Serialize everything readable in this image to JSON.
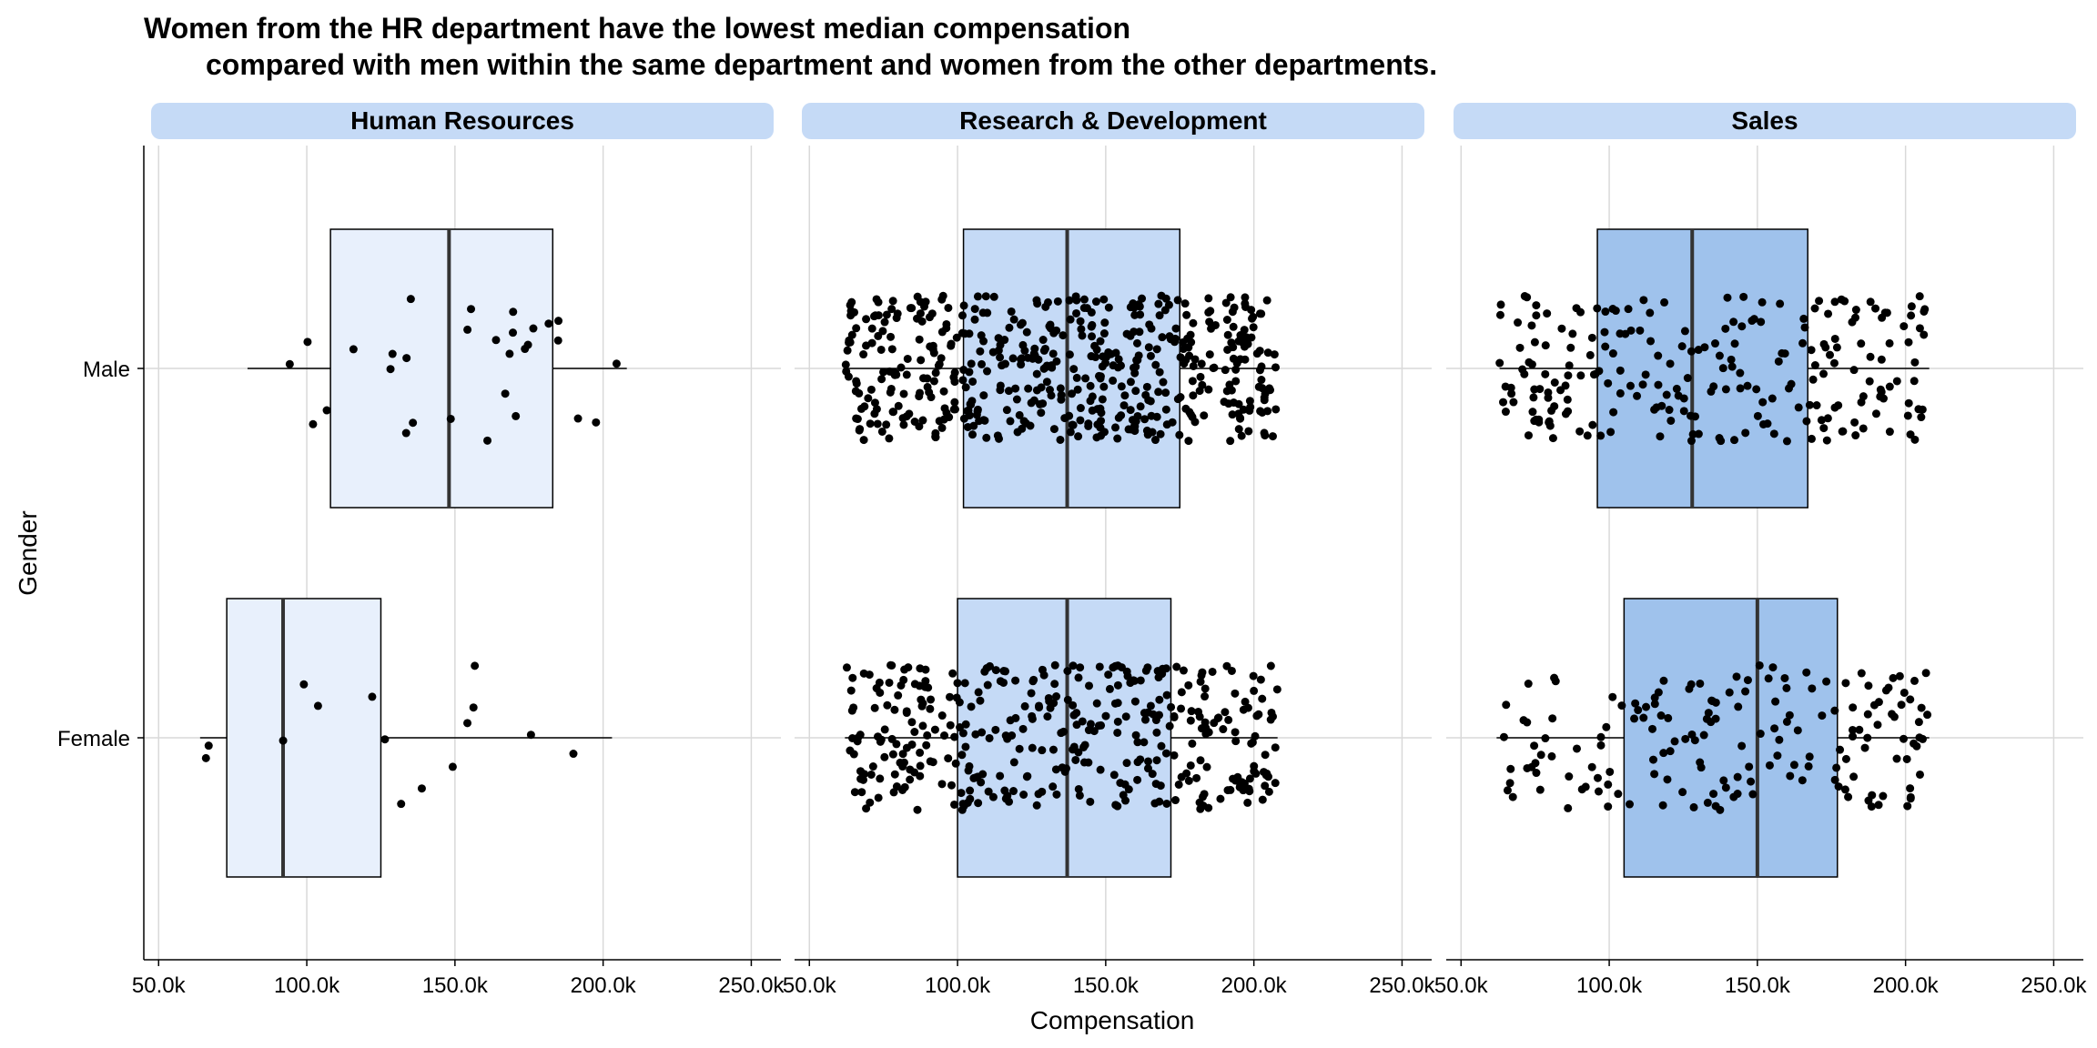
{
  "chart_data": {
    "type": "boxplot-jitter",
    "title_line1": "Women from the HR department have the lowest median compensation",
    "title_line2": "compared with men within the same department and women from the other departments.",
    "xlabel": "Compensation",
    "ylabel": "Gender",
    "xlim": [
      45000,
      260000
    ],
    "x_ticks": [
      50000,
      100000,
      150000,
      200000,
      250000
    ],
    "x_tick_labels": [
      "50.0k",
      "100.0k",
      "150.0k",
      "200.0k",
      "250.0k"
    ],
    "categories": [
      "Male",
      "Female"
    ],
    "colors": {
      "strip_bg": "#c5daf6",
      "hr_fill": "#e8f0fc",
      "rd_fill": "#c5daf6",
      "sales_fill": "#9fc2ec",
      "point": "#000000",
      "grid": "#d9d9d9"
    },
    "panels": [
      {
        "name": "Human Resources",
        "fill_key": "hr_fill",
        "boxes": [
          {
            "gender": "Male",
            "whisker_low": 80000,
            "q1": 108000,
            "median": 148000,
            "q3": 183000,
            "whisker_high": 208000,
            "n_points": 30
          },
          {
            "gender": "Female",
            "whisker_low": 64000,
            "q1": 73000,
            "median": 92000,
            "q3": 125000,
            "whisker_high": 203000,
            "n_points": 15
          }
        ]
      },
      {
        "name": "Research & Development",
        "fill_key": "rd_fill",
        "boxes": [
          {
            "gender": "Male",
            "whisker_low": 62000,
            "q1": 102000,
            "median": 137000,
            "q3": 175000,
            "whisker_high": 208000,
            "n_points": 520
          },
          {
            "gender": "Female",
            "whisker_low": 62000,
            "q1": 100000,
            "median": 137000,
            "q3": 172000,
            "whisker_high": 208000,
            "n_points": 380
          }
        ]
      },
      {
        "name": "Sales",
        "fill_key": "sales_fill",
        "boxes": [
          {
            "gender": "Male",
            "whisker_low": 63000,
            "q1": 96000,
            "median": 128000,
            "q3": 167000,
            "whisker_high": 208000,
            "n_points": 230
          },
          {
            "gender": "Female",
            "whisker_low": 62000,
            "q1": 105000,
            "median": 150000,
            "q3": 177000,
            "whisker_high": 208000,
            "n_points": 170
          }
        ]
      }
    ]
  }
}
